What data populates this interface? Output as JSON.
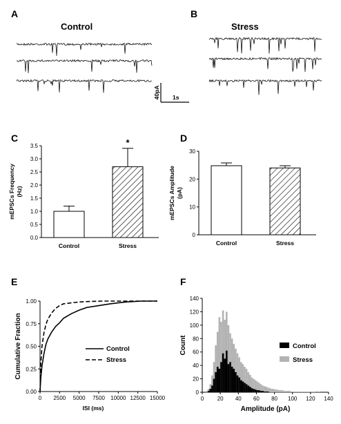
{
  "panels": {
    "A": {
      "label": "A",
      "title": "Control"
    },
    "B": {
      "label": "B",
      "title": "Stress"
    },
    "scalebar": {
      "y_label": "40pA",
      "x_label": "1s"
    },
    "C": {
      "label": "C"
    },
    "D": {
      "label": "D"
    },
    "E": {
      "label": "E"
    },
    "F": {
      "label": "F"
    }
  },
  "chart_data": [
    {
      "panel": "C",
      "type": "bar",
      "categories": [
        "Control",
        "Stress"
      ],
      "values": [
        1.0,
        2.7
      ],
      "errors": [
        0.2,
        0.7
      ],
      "ylabel": "mEPSCs Frequency (Hz)",
      "ylabel_lines": [
        "mEPSCs Frequency",
        "(Hz)"
      ],
      "ylim": [
        0,
        3.5
      ],
      "yticks": [
        "0.0",
        "0.5",
        "1.0",
        "1.5",
        "2.0",
        "2.5",
        "3.0",
        "3.5"
      ],
      "annotation": "*",
      "fills": [
        "open",
        "hatched"
      ]
    },
    {
      "panel": "D",
      "type": "bar",
      "categories": [
        "Control",
        "Stress"
      ],
      "values": [
        24.8,
        24.0
      ],
      "errors": [
        1.0,
        0.8
      ],
      "ylabel": "mEPSCs Amplitude (pA)",
      "ylabel_lines": [
        "mEPSCs Amplitude",
        "(pA)"
      ],
      "ylim": [
        0,
        30
      ],
      "yticks": [
        "0",
        "10",
        "20",
        "30"
      ],
      "fills": [
        "open",
        "hatched"
      ]
    },
    {
      "panel": "E",
      "type": "line",
      "xlabel": "ISI (ms)",
      "ylabel": "Cumulative Fraction",
      "xlim": [
        0,
        15000
      ],
      "ylim": [
        0,
        1.0
      ],
      "xticks": [
        "0",
        "2500",
        "5000",
        "7500",
        "10000",
        "12500",
        "15000"
      ],
      "yticks": [
        "0.00",
        "0.25",
        "0.50",
        "0.75",
        "1.00"
      ],
      "series": [
        {
          "name": "Control",
          "style": "solid",
          "x": [
            0,
            100,
            250,
            500,
            750,
            1000,
            1500,
            2000,
            2500,
            3000,
            4000,
            5000,
            6000,
            7500,
            9000,
            10000,
            11000,
            13000
          ],
          "y": [
            0,
            0.15,
            0.28,
            0.42,
            0.52,
            0.58,
            0.66,
            0.72,
            0.76,
            0.81,
            0.86,
            0.9,
            0.93,
            0.95,
            0.97,
            0.98,
            0.99,
            1.0
          ]
        },
        {
          "name": "Stress",
          "style": "dashed",
          "x": [
            0,
            100,
            250,
            500,
            750,
            1000,
            1500,
            2000,
            2500,
            3000,
            4000,
            5000,
            6000,
            8000,
            10000,
            12000
          ],
          "y": [
            0,
            0.3,
            0.5,
            0.65,
            0.74,
            0.8,
            0.87,
            0.92,
            0.95,
            0.97,
            0.98,
            0.99,
            0.995,
            1.0,
            1.0,
            1.0
          ]
        }
      ]
    },
    {
      "panel": "F",
      "type": "bar",
      "subtype": "histogram",
      "xlabel": "Amplitude (pA)",
      "ylabel": "Count",
      "xlim": [
        0,
        140
      ],
      "ylim": [
        0,
        140
      ],
      "xticks": [
        "0",
        "20",
        "40",
        "60",
        "80",
        "100",
        "120",
        "140"
      ],
      "yticks": [
        "0",
        "20",
        "40",
        "60",
        "80",
        "100",
        "120",
        "140"
      ],
      "bin_width": 2,
      "bin_start": 4,
      "series": [
        {
          "name": "Control",
          "color": "#000000",
          "values": [
            0,
            2,
            5,
            10,
            20,
            30,
            38,
            35,
            45,
            58,
            50,
            62,
            42,
            45,
            38,
            35,
            30,
            25,
            22,
            18,
            16,
            14,
            12,
            10,
            8,
            6,
            5,
            4,
            3,
            3,
            2,
            2,
            1,
            1,
            1,
            0,
            0,
            0,
            0,
            0,
            0,
            0,
            0,
            0,
            0,
            0,
            0,
            0,
            0,
            0,
            0,
            0,
            0,
            0,
            0,
            0,
            0,
            0,
            0,
            0,
            0,
            0,
            0,
            0
          ]
        },
        {
          "name": "Stress",
          "color": "#b3b3b3",
          "values": [
            2,
            5,
            12,
            25,
            45,
            70,
            90,
            112,
            105,
            122,
            108,
            120,
            100,
            88,
            80,
            72,
            65,
            58,
            52,
            45,
            42,
            38,
            35,
            30,
            26,
            22,
            20,
            18,
            16,
            14,
            12,
            10,
            9,
            8,
            7,
            6,
            5,
            5,
            4,
            4,
            3,
            3,
            3,
            2,
            2,
            2,
            2,
            1,
            1,
            1,
            1,
            1,
            1,
            1,
            1,
            1,
            1,
            1,
            1,
            1,
            1,
            0,
            1,
            0
          ]
        }
      ]
    }
  ]
}
